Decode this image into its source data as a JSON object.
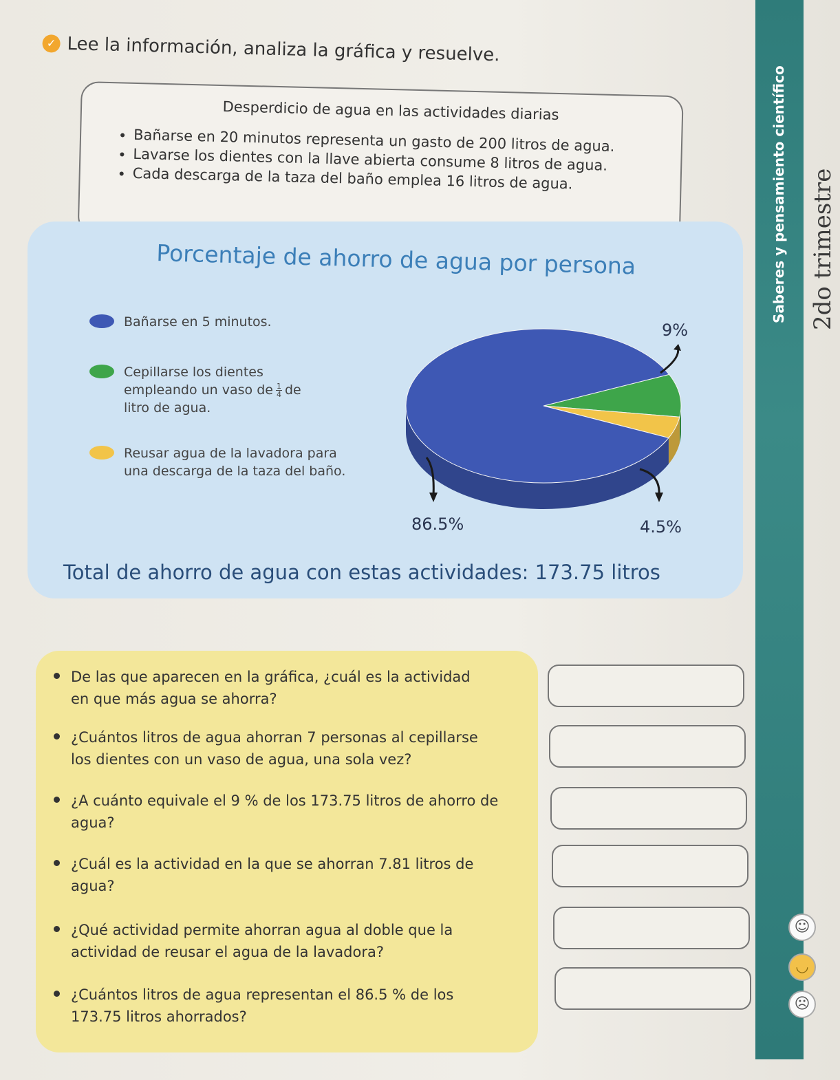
{
  "instruction": "Lee la información, analiza la gráfica y resuelve.",
  "info_box": {
    "title": "Desperdicio de agua en las actividades diarias",
    "items": [
      "Bañarse en 20 minutos representa un gasto de 200 litros de agua.",
      "Lavarse los dientes con la llave abierta consume 8 litros de agua.",
      "Cada descarga de la taza del baño emplea 16 litros de agua."
    ]
  },
  "chart": {
    "title": "Porcentaje de ahorro de agua por persona",
    "legend": [
      {
        "text": "Bañarse en 5 minutos.",
        "color": "#3e58b4"
      },
      {
        "line1": "Cepillarse los dientes",
        "line2a": "empleando un vaso de",
        "frac_num": "1",
        "frac_den": "4",
        "line2b": "de",
        "line3": "litro de agua.",
        "color": "#3ea54a"
      },
      {
        "line1": "Reusar agua de la lavadora para",
        "line2": "una descarga de la taza del baño.",
        "color": "#f2c449"
      }
    ],
    "labels": {
      "green": "9%",
      "blue": "86.5%",
      "yellow": "4.5%"
    },
    "total": "Total de ahorro de agua con estas actividades: 173.75 litros"
  },
  "chart_data": {
    "type": "pie",
    "title": "Porcentaje de ahorro de agua por persona",
    "categories": [
      "Bañarse en 5 minutos.",
      "Cepillarse los dientes empleando un vaso de 1/4 de litro de agua.",
      "Reusar agua de la lavadora para una descarga de la taza del baño."
    ],
    "values": [
      86.5,
      9,
      4.5
    ],
    "colors": [
      "#3e58b4",
      "#3ea54a",
      "#f2c449"
    ],
    "legend_position": "left"
  },
  "questions": [
    {
      "line1": "De las que aparecen en la gráfica, ¿cuál es la actividad",
      "line2": "en que más agua se ahorra?"
    },
    {
      "line1": "¿Cuántos litros de agua ahorran 7 personas al cepillarse",
      "line2": "los dientes con un vaso de agua, una sola vez?"
    },
    {
      "line1": "¿A cuánto equivale el 9 % de los 173.75 litros de ahorro de",
      "line2": "agua?"
    },
    {
      "line1": "¿Cuál es la actividad en la que se ahorran 7.81 litros de",
      "line2": "agua?"
    },
    {
      "line1": "¿Qué actividad permite ahorran agua al doble que la",
      "line2": "actividad de reusar el agua de la lavadora?"
    },
    {
      "line1": "¿Cuántos litros de agua representan el 86.5 % de los",
      "line2": "173.75 litros ahorrados?"
    }
  ],
  "side": {
    "label": "Saberes y pensamiento científico",
    "handwriting": "2do trimestre",
    "faces": [
      "☺",
      "◡",
      "☹"
    ]
  }
}
